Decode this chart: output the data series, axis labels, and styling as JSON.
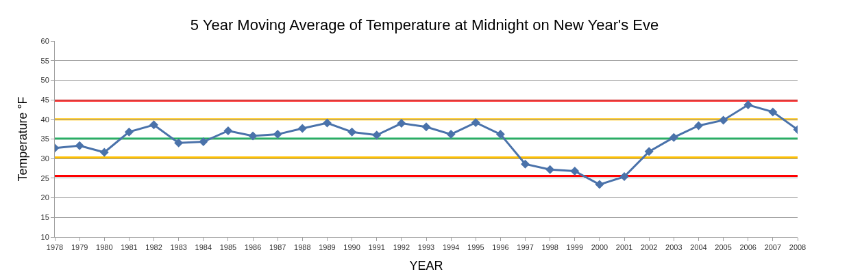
{
  "chart_data": {
    "type": "line",
    "title": "5 Year Moving Average of Temperature at Midnight on New Year's Eve",
    "xlabel": "YEAR",
    "ylabel": "Temperature °F",
    "categories": [
      "1978",
      "1979",
      "1980",
      "1981",
      "1982",
      "1983",
      "1984",
      "1985",
      "1986",
      "1987",
      "1988",
      "1989",
      "1990",
      "1991",
      "1992",
      "1993",
      "1994",
      "1995",
      "1996",
      "1997",
      "1998",
      "1999",
      "2000",
      "2001",
      "2002",
      "2003",
      "2004",
      "2005",
      "2006",
      "2007",
      "2008"
    ],
    "series": [
      {
        "color": "#4a72aa",
        "values": [
          32.7,
          33.3,
          31.6,
          36.8,
          38.6,
          34.0,
          34.3,
          37.1,
          35.8,
          36.2,
          37.7,
          39.1,
          36.8,
          36.0,
          39.0,
          38.1,
          36.2,
          39.2,
          36.2,
          28.6,
          27.2,
          26.8,
          23.4,
          25.4,
          31.8,
          35.4,
          38.4,
          39.8,
          43.7,
          41.9,
          37.4
        ]
      }
    ],
    "ylim": [
      10,
      60
    ],
    "yticks": [
      10,
      15,
      20,
      25,
      30,
      35,
      40,
      45,
      50,
      55,
      60
    ],
    "grid": "y",
    "legend": false,
    "marker": "diamond",
    "line_style": "solid",
    "ref_lines": [
      {
        "axis": "y",
        "value": 44.8,
        "color": "#ff0000"
      },
      {
        "axis": "y",
        "value": 40.0,
        "color": "#ffc000"
      },
      {
        "axis": "y",
        "value": 35.1,
        "color": "#00b050"
      },
      {
        "axis": "y",
        "value": 30.3,
        "color": "#ffc000"
      },
      {
        "axis": "y",
        "value": 25.6,
        "color": "#ff0000"
      }
    ]
  }
}
